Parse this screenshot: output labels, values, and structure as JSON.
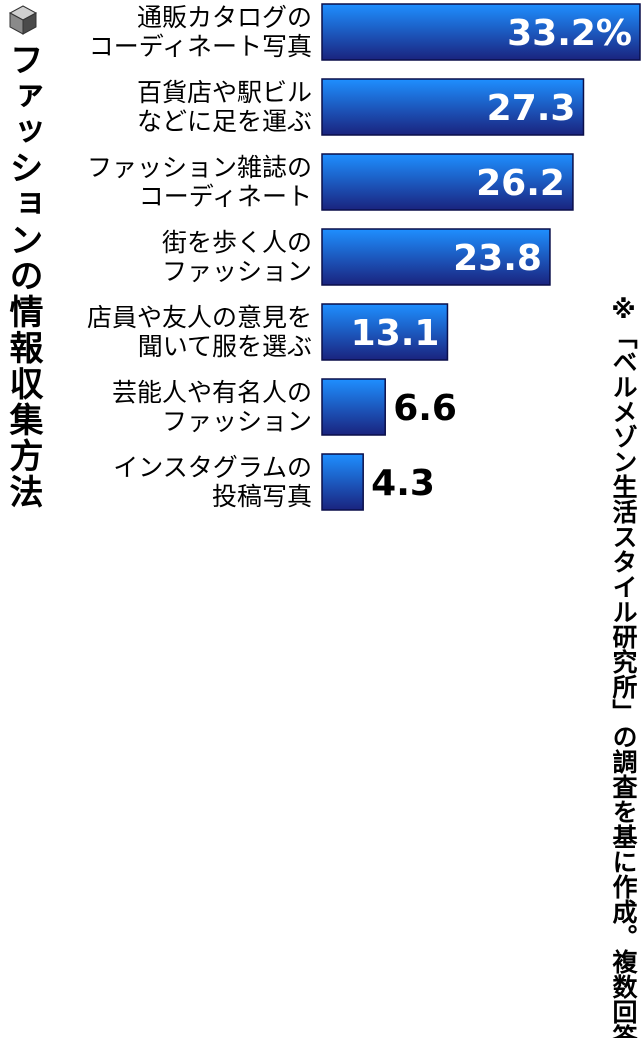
{
  "chart_data": {
    "type": "bar",
    "orientation": "horizontal",
    "title": "ファッションの情報収集方法",
    "categories": [
      [
        "通販カタログの",
        "コーディネート写真"
      ],
      [
        "百貨店や駅ビル",
        "などに足を運ぶ"
      ],
      [
        "ファッション雑誌の",
        "コーディネート"
      ],
      [
        "街を歩く人の",
        "ファッション"
      ],
      [
        "店員や友人の意見を",
        "聞いて服を選ぶ"
      ],
      [
        "芸能人や有名人の",
        "ファッション"
      ],
      [
        "インスタグラムの",
        "投稿写真"
      ]
    ],
    "values": [
      33.2,
      27.3,
      26.2,
      23.8,
      13.1,
      6.6,
      4.3
    ],
    "value_labels": [
      "33.2%",
      "27.3",
      "26.2",
      "23.8",
      "13.1",
      "6.6",
      "4.3"
    ],
    "xlim": [
      0,
      33.2
    ],
    "unit": "%",
    "bar_color_top": "#1e8fff",
    "bar_color_bottom": "#1a237e",
    "note": "※「ベルメゾン生活スタイル研究所」の調査を基に作成。複数回答"
  }
}
